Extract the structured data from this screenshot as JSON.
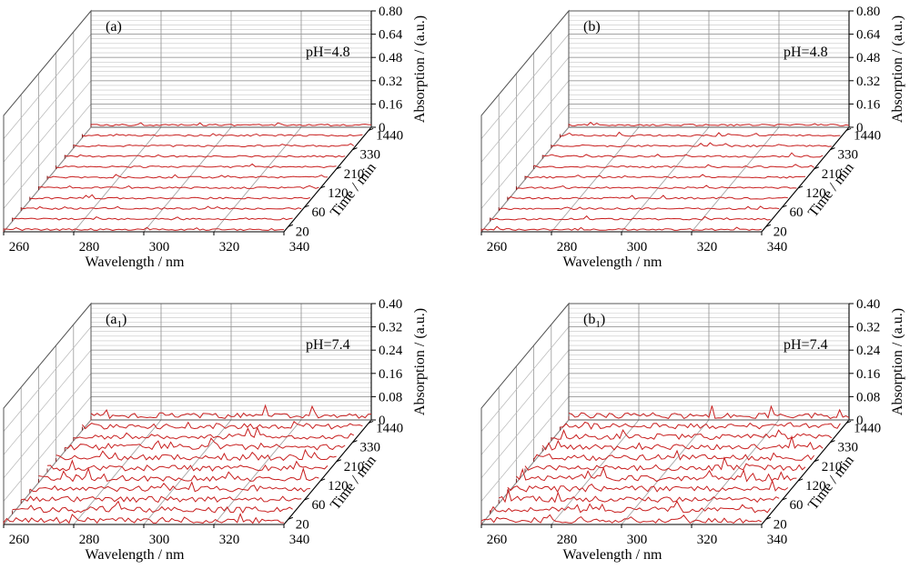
{
  "figure": {
    "panels": [
      {
        "id": "a",
        "label_main": "(a",
        "label_sub": "",
        "label_end": ")",
        "condition": "pH=4.8",
        "zlabel": "Absorption / (a.u.)",
        "ylabel": "Time / min",
        "xlabel": "Wavelength / nm",
        "z_ticks": [
          "0",
          "0.16",
          "0.32",
          "0.48",
          "0.64",
          "0.80"
        ],
        "y_ticks": [
          "20",
          "60",
          "120",
          "210",
          "330",
          "1440"
        ],
        "x_ticks": [
          "260",
          "280",
          "300",
          "320",
          "340"
        ]
      },
      {
        "id": "b",
        "label_main": "(b",
        "label_sub": "",
        "label_end": ")",
        "condition": "pH=4.8",
        "zlabel": "Absorption / (a.u.)",
        "ylabel": "Time / min",
        "xlabel": "Wavelength / nm",
        "z_ticks": [
          "0",
          "0.16",
          "0.32",
          "0.48",
          "0.64",
          "0.80"
        ],
        "y_ticks": [
          "20",
          "60",
          "120",
          "210",
          "330",
          "1440"
        ],
        "x_ticks": [
          "260",
          "280",
          "300",
          "320",
          "340"
        ]
      },
      {
        "id": "a1",
        "label_main": "(a",
        "label_sub": "1",
        "label_end": ")",
        "condition": "pH=7.4",
        "zlabel": "Absorption / (a.u.)",
        "ylabel": "Time / min",
        "xlabel": "Wavelength / nm",
        "z_ticks": [
          "0",
          "0.08",
          "0.16",
          "0.24",
          "0.32",
          "0.40"
        ],
        "y_ticks": [
          "20",
          "60",
          "120",
          "210",
          "330",
          "1440"
        ],
        "x_ticks": [
          "260",
          "280",
          "300",
          "320",
          "340"
        ]
      },
      {
        "id": "b1",
        "label_main": "(b",
        "label_sub": "1",
        "label_end": ")",
        "condition": "pH=7.4",
        "zlabel": "Absorption / (a.u.)",
        "ylabel": "Time / min",
        "xlabel": "Wavelength / nm",
        "z_ticks": [
          "0",
          "0.08",
          "0.16",
          "0.24",
          "0.32",
          "0.40"
        ],
        "y_ticks": [
          "20",
          "60",
          "120",
          "210",
          "330",
          "1440"
        ],
        "x_ticks": [
          "260",
          "280",
          "300",
          "320",
          "340"
        ]
      }
    ]
  },
  "colors": {
    "trace": "#c81e1e",
    "grid": "#9a9a9a",
    "axis": "#000000"
  },
  "chart_data": [
    {
      "panel": "a",
      "type": "line",
      "subtype": "3d-waterfall",
      "x": [
        260,
        340
      ],
      "series_times_min": [
        20,
        60,
        120,
        210,
        330,
        1440
      ],
      "series_count_approx": 11,
      "values_note": "all traces near baseline",
      "xlabel": "Wavelength / nm",
      "ylabel": "Time / min",
      "zlabel": "Absorption / (a.u.)",
      "zlim": [
        0,
        0.8
      ],
      "noise_level": 0.012
    },
    {
      "panel": "b",
      "type": "line",
      "subtype": "3d-waterfall",
      "x": [
        260,
        340
      ],
      "series_times_min": [
        20,
        60,
        120,
        210,
        330,
        1440
      ],
      "series_count_approx": 11,
      "values_note": "all traces near baseline",
      "xlabel": "Wavelength / nm",
      "ylabel": "Time / min",
      "zlabel": "Absorption / (a.u.)",
      "zlim": [
        0,
        0.8
      ],
      "noise_level": 0.012
    },
    {
      "panel": "a1",
      "type": "line",
      "subtype": "3d-waterfall",
      "x": [
        260,
        340
      ],
      "series_times_min": [
        20,
        60,
        120,
        210,
        330,
        1440
      ],
      "series_count_approx": 11,
      "values_note": "all traces near baseline",
      "xlabel": "Wavelength / nm",
      "ylabel": "Time / min",
      "zlabel": "Absorption / (a.u.)",
      "zlim": [
        0,
        0.4
      ],
      "noise_level": 0.02
    },
    {
      "panel": "b1",
      "type": "line",
      "subtype": "3d-waterfall",
      "x": [
        260,
        340
      ],
      "series_times_min": [
        20,
        60,
        120,
        210,
        330,
        1440
      ],
      "series_count_approx": 11,
      "values_note": "all traces near baseline",
      "xlabel": "Wavelength / nm",
      "ylabel": "Time / min",
      "zlabel": "Absorption / (a.u.)",
      "zlim": [
        0,
        0.4
      ],
      "noise_level": 0.02
    }
  ]
}
